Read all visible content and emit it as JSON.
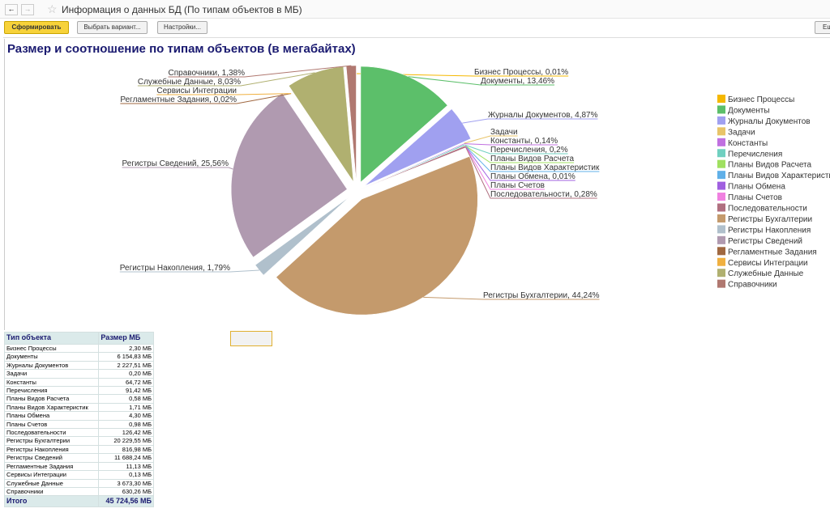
{
  "window": {
    "title": "Информация о данных БД (По типам объектов в МБ)"
  },
  "toolbar": {
    "buttons": [
      "Сформировать",
      "Выбрать вариант...",
      "Настройки...",
      "Ещ"
    ]
  },
  "chart_data": {
    "type": "pie",
    "title": "Размер и соотношение по типам объектов (в мегабайтах)",
    "categories": [
      "Бизнес Процессы",
      "Документы",
      "Журналы Документов",
      "Задачи",
      "Константы",
      "Перечисления",
      "Планы Видов Расчета",
      "Планы Видов Характеристик",
      "Планы Обмена",
      "Планы Счетов",
      "Последовательности",
      "Регистры Бухгалтерии",
      "Регистры Накопления",
      "Регистры Сведений",
      "Регламентные Задания",
      "Сервисы Интеграции",
      "Служебные Данные",
      "Справочники"
    ],
    "values": [
      0.01,
      13.46,
      4.87,
      0.0004,
      0.14,
      0.2,
      0.0013,
      0.0037,
      0.01,
      0.0021,
      0.28,
      44.24,
      1.79,
      25.56,
      0.02,
      0.0003,
      8.03,
      1.38
    ],
    "value_labels": [
      "Бизнес Процессы, 0,01%",
      "Документы, 13,46%",
      "Журналы Документов, 4,87%",
      "Задачи",
      "Константы, 0,14%",
      "Перечисления, 0,2%",
      "Планы Видов Расчета",
      "Планы Видов Характеристик",
      "Планы Обмена, 0,01%",
      "Планы Счетов",
      "Последовательности, 0,28%",
      "Регистры Бухгалтерии, 44,24%",
      "Регистры Накопления, 1,79%",
      "Регистры Сведений, 25,56%",
      "Регламентные Задания, 0,02%",
      "Сервисы Интеграции",
      "Служебные Данные, 8,03%",
      "Справочники, 1,38%"
    ],
    "colors": [
      "#f5b800",
      "#5cbf6a",
      "#a0a0f0",
      "#e8c468",
      "#c070e0",
      "#70d0c0",
      "#a0e060",
      "#60b0e8",
      "#a060e0",
      "#f080e0",
      "#b07080",
      "#c49a6c",
      "#b0c0cc",
      "#b09ab0",
      "#a06840",
      "#f0b040",
      "#b0b070",
      "#b07870"
    ],
    "legend": "right"
  },
  "table": {
    "header": [
      "Тип объекта",
      "Размер МБ"
    ],
    "rows": [
      [
        "Бизнес Процессы",
        "2,30 МБ"
      ],
      [
        "Документы",
        "6 154,83 МБ"
      ],
      [
        "Журналы Документов",
        "2 227,51 МБ"
      ],
      [
        "Задачи",
        "0,20 МБ"
      ],
      [
        "Константы",
        "64,72 МБ"
      ],
      [
        "Перечисления",
        "91,42 МБ"
      ],
      [
        "Планы Видов Расчета",
        "0,58 МБ"
      ],
      [
        "Планы Видов Характеристик",
        "1,71 МБ"
      ],
      [
        "Планы Обмена",
        "4,30 МБ"
      ],
      [
        "Планы Счетов",
        "0,98 МБ"
      ],
      [
        "Последовательности",
        "126,42 МБ"
      ],
      [
        "Регистры Бухгалтерии",
        "20 229,55 МБ"
      ],
      [
        "Регистры Накопления",
        "816,98 МБ"
      ],
      [
        "Регистры Сведений",
        "11 688,24 МБ"
      ],
      [
        "Регламентные Задания",
        "11,13 МБ"
      ],
      [
        "Сервисы Интеграции",
        "0,13 МБ"
      ],
      [
        "Служебные Данные",
        "3 673,30 МБ"
      ],
      [
        "Справочники",
        "630,26 МБ"
      ]
    ],
    "total": [
      "Итого",
      "45 724,56 МБ"
    ]
  }
}
